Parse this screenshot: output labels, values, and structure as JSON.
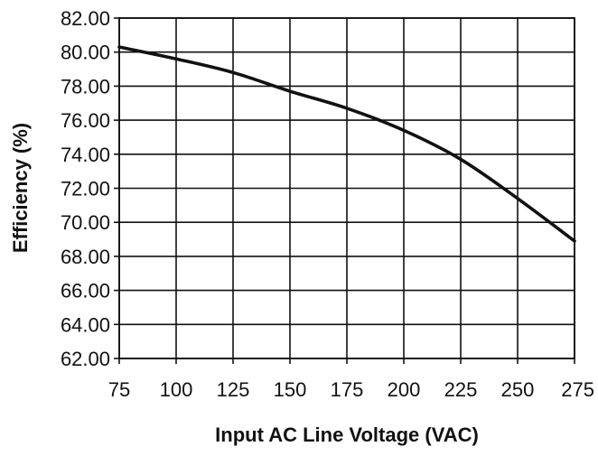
{
  "chart_data": {
    "type": "line",
    "title": "",
    "xlabel": "Input AC Line Voltage (VAC)",
    "ylabel": "Efficiency (%)",
    "xlim": [
      75,
      275
    ],
    "ylim": [
      62,
      82
    ],
    "grid": true,
    "legend": "none",
    "x_ticks": [
      "75",
      "100",
      "125",
      "150",
      "175",
      "200",
      "225",
      "250",
      "275"
    ],
    "y_ticks": [
      "62.00",
      "64.00",
      "66.00",
      "68.00",
      "70.00",
      "72.00",
      "74.00",
      "76.00",
      "78.00",
      "80.00",
      "82.00"
    ],
    "series": [
      {
        "name": "",
        "color": "#111111",
        "x": [
          75,
          100,
          125,
          150,
          175,
          200,
          225,
          250,
          275
        ],
        "y": [
          80.3,
          79.6,
          78.8,
          77.7,
          76.7,
          75.4,
          73.7,
          71.4,
          68.9
        ]
      }
    ]
  }
}
